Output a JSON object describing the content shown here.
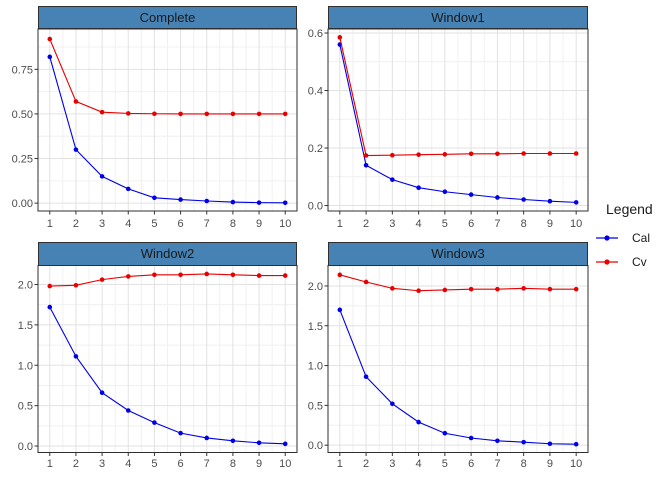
{
  "figure": {
    "legend": {
      "title": "Legend",
      "entries": [
        {
          "label": "Cal",
          "color": "#0000E8"
        },
        {
          "label": "Cv",
          "color": "#E80000"
        }
      ]
    },
    "colors": {
      "background": "#FFFFFF",
      "strip_bg": "#4682B4",
      "strip_border": "#2F2F2F",
      "strip_text": "#1A1A1A",
      "panel_border": "#2F2F2F",
      "grid_major": "#E2E2E2",
      "grid_minor": "#F0F0F0",
      "axis_text": "#4D4D4D",
      "tick_mark": "#333333"
    }
  },
  "chart_data": [
    {
      "type": "line",
      "title": "Complete",
      "x": [
        1,
        2,
        3,
        4,
        5,
        6,
        7,
        8,
        9,
        10
      ],
      "xtick_labels": [
        "1",
        "2",
        "3",
        "4",
        "5",
        "6",
        "7",
        "8",
        "9",
        "10"
      ],
      "xlim": [
        0.55,
        10.45
      ],
      "ylim": [
        -0.044,
        0.976
      ],
      "yticks": {
        "values": [
          0,
          0.25,
          0.5,
          0.75
        ],
        "labels": [
          "0.00",
          "0.25",
          "0.50",
          "0.75"
        ]
      },
      "grid": true,
      "series": [
        {
          "name": "Cal",
          "color": "#0000E8",
          "values": [
            0.82,
            0.3,
            0.15,
            0.08,
            0.03,
            0.02,
            0.012,
            0.006,
            0.003,
            0.002
          ]
        },
        {
          "name": "Cv",
          "color": "#E80000",
          "values": [
            0.92,
            0.57,
            0.51,
            0.503,
            0.501,
            0.5,
            0.5,
            0.5,
            0.5,
            0.5
          ]
        }
      ]
    },
    {
      "type": "line",
      "title": "Window1",
      "x": [
        1,
        2,
        3,
        4,
        5,
        6,
        7,
        8,
        9,
        10
      ],
      "xtick_labels": [
        "1",
        "2",
        "3",
        "4",
        "5",
        "6",
        "7",
        "8",
        "9",
        "10"
      ],
      "xlim": [
        0.55,
        10.45
      ],
      "ylim": [
        -0.019,
        0.614
      ],
      "yticks": {
        "values": [
          0,
          0.2,
          0.4,
          0.6
        ],
        "labels": [
          "0.0",
          "0.2",
          "0.4",
          "0.6"
        ]
      },
      "grid": true,
      "series": [
        {
          "name": "Cal",
          "color": "#0000E8",
          "values": [
            0.56,
            0.14,
            0.09,
            0.062,
            0.048,
            0.038,
            0.028,
            0.021,
            0.015,
            0.011
          ]
        },
        {
          "name": "Cv",
          "color": "#E80000",
          "values": [
            0.585,
            0.174,
            0.175,
            0.177,
            0.178,
            0.18,
            0.18,
            0.181,
            0.181,
            0.181
          ]
        }
      ]
    },
    {
      "type": "line",
      "title": "Window2",
      "x": [
        1,
        2,
        3,
        4,
        5,
        6,
        7,
        8,
        9,
        10
      ],
      "xtick_labels": [
        "1",
        "2",
        "3",
        "4",
        "5",
        "6",
        "7",
        "8",
        "9",
        "10"
      ],
      "xlim": [
        0.55,
        10.45
      ],
      "ylim": [
        -0.08,
        2.235
      ],
      "yticks": {
        "values": [
          0,
          0.5,
          1.0,
          1.5,
          2.0
        ],
        "labels": [
          "0.0",
          "0.5",
          "1.0",
          "1.5",
          "2.0"
        ]
      },
      "grid": true,
      "series": [
        {
          "name": "Cal",
          "color": "#0000E8",
          "values": [
            1.72,
            1.11,
            0.66,
            0.44,
            0.29,
            0.16,
            0.1,
            0.065,
            0.04,
            0.027
          ]
        },
        {
          "name": "Cv",
          "color": "#E80000",
          "values": [
            1.98,
            1.99,
            2.06,
            2.1,
            2.12,
            2.12,
            2.13,
            2.12,
            2.11,
            2.11
          ]
        }
      ]
    },
    {
      "type": "line",
      "title": "Window3",
      "x": [
        1,
        2,
        3,
        4,
        5,
        6,
        7,
        8,
        9,
        10
      ],
      "xtick_labels": [
        "1",
        "2",
        "3",
        "4",
        "5",
        "6",
        "7",
        "8",
        "9",
        "10"
      ],
      "xlim": [
        0.55,
        10.45
      ],
      "ylim": [
        -0.092,
        2.257
      ],
      "yticks": {
        "values": [
          0,
          0.5,
          1.0,
          1.5,
          2.0
        ],
        "labels": [
          "0.0",
          "0.5",
          "1.0",
          "1.5",
          "2.0"
        ]
      },
      "grid": true,
      "series": [
        {
          "name": "Cal",
          "color": "#0000E8",
          "values": [
            1.7,
            0.86,
            0.52,
            0.29,
            0.15,
            0.09,
            0.055,
            0.038,
            0.018,
            0.012
          ]
        },
        {
          "name": "Cv",
          "color": "#E80000",
          "values": [
            2.14,
            2.05,
            1.97,
            1.94,
            1.95,
            1.96,
            1.96,
            1.97,
            1.96,
            1.96
          ]
        }
      ]
    }
  ]
}
